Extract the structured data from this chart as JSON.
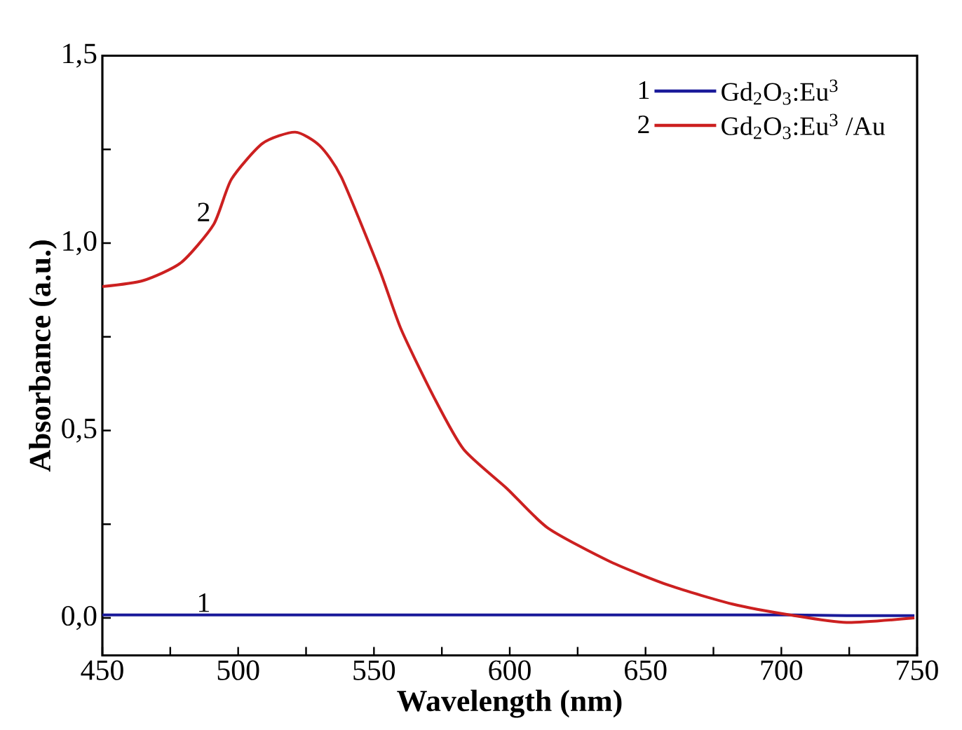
{
  "chart_data": {
    "type": "line",
    "xlabel": "Wavelength (nm)",
    "ylabel": "Absorbance (a.u.)",
    "xlim": [
      450,
      750
    ],
    "ylim": [
      -0.1,
      1.5
    ],
    "xticks": [
      450,
      {
        "value": 475,
        "label": null
      },
      500,
      {
        "value": 525,
        "label": null
      },
      550,
      {
        "value": 575,
        "label": null
      },
      600,
      {
        "value": 625,
        "label": null
      },
      650,
      {
        "value": 675,
        "label": null
      },
      700,
      {
        "value": 725,
        "label": null
      },
      750
    ],
    "yticks": [
      {
        "value": 0,
        "label": "0,0"
      },
      {
        "value": 0.25,
        "label": null
      },
      {
        "value": 0.5,
        "label": "0,5"
      },
      {
        "value": 0.75,
        "label": null
      },
      {
        "value": 1.0,
        "label": "1,0"
      },
      {
        "value": 1.25,
        "label": null
      },
      {
        "value": 1.5,
        "label": "1,5"
      }
    ],
    "x": [
      450,
      465,
      479,
      491,
      497.5,
      509,
      521,
      530,
      538,
      552,
      560,
      572,
      583,
      599,
      614,
      637,
      659,
      682,
      704,
      724,
      749
    ],
    "series": [
      {
        "name": "Gd$_{2}$O$_{3}$:Eu$^{3}$",
        "color": "#1a1a9a",
        "values": [
          0.008,
          0.008,
          0.008,
          0.008,
          0.008,
          0.008,
          0.008,
          0.008,
          0.008,
          0.008,
          0.008,
          0.008,
          0.008,
          0.008,
          0.008,
          0.008,
          0.008,
          0.008,
          0.008,
          0.006,
          0.006
        ]
      },
      {
        "name": "Gd$_{2}$O$_{3}$:Eu$^{3}$ /Au",
        "color": "#cc2020",
        "values": [
          0.884,
          0.9,
          0.948,
          1.05,
          1.17,
          1.266,
          1.296,
          1.26,
          1.176,
          0.93,
          0.77,
          0.59,
          0.45,
          0.345,
          0.24,
          0.15,
          0.086,
          0.037,
          0.007,
          -0.012,
          0.0
        ]
      }
    ],
    "annotations": [
      "1",
      "2"
    ],
    "legend": "top right",
    "line_style": "solid",
    "grid": false
  }
}
